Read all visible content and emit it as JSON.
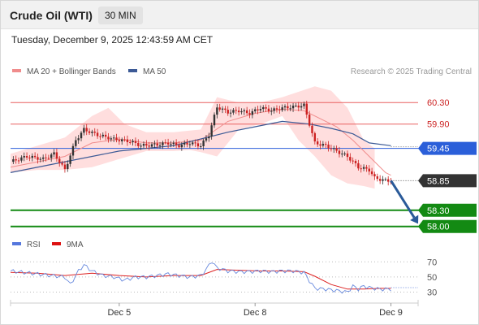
{
  "header": {
    "title": "Crude Oil (WTI)",
    "timeframe": "30 MIN"
  },
  "datetime": "Tuesday, December 9, 2025 12:43:59 AM CET",
  "legend": {
    "items": [
      {
        "label": "MA 20 + Bollinger Bands",
        "color": "#f08c8c"
      },
      {
        "label": "MA 50",
        "color": "#3c5a96"
      }
    ],
    "credit": "Research © 2025 Trading Central"
  },
  "rsi_legend": {
    "items": [
      {
        "label": "RSI",
        "color": "#5577dd"
      },
      {
        "label": "9MA",
        "color": "#dd1111"
      }
    ]
  },
  "colors": {
    "resistance": "#e86060",
    "current": "#2b5fd9",
    "target": "#138a13",
    "last": "#333333",
    "arrow": "#2a5a99",
    "rsi": "#6688dd",
    "rsi_ma": "#dd2222",
    "bands": "#ffd8d8",
    "up": "#333333",
    "down": "#cc2222"
  },
  "chart_data": {
    "type": "candlestick",
    "ylim": [
      57.92,
      60.62
    ],
    "x_range": [
      0,
      150
    ],
    "x_ticks": [
      {
        "label": "Dec 5",
        "x": 40
      },
      {
        "label": "Dec 8",
        "x": 90
      },
      {
        "label": "Dec 9",
        "x": 140
      }
    ],
    "levels": [
      {
        "label": "60.30",
        "value": 60.3,
        "kind": "resistance"
      },
      {
        "label": "59.90",
        "value": 59.9,
        "kind": "resistance"
      },
      {
        "label": "59.45",
        "value": 59.45,
        "kind": "current"
      },
      {
        "label": "58.85",
        "value": 58.85,
        "kind": "last"
      },
      {
        "label": "58.30",
        "value": 58.3,
        "kind": "target"
      },
      {
        "label": "58.00",
        "value": 58.0,
        "kind": "target"
      }
    ],
    "forecast_arrow": {
      "from": [
        140,
        58.85
      ],
      "to": [
        150,
        58.05
      ]
    },
    "price_anchors": [
      [
        0,
        59.2
      ],
      [
        6,
        59.3
      ],
      [
        12,
        59.25
      ],
      [
        16,
        59.35
      ],
      [
        20,
        59.05
      ],
      [
        24,
        59.6
      ],
      [
        27,
        59.8
      ],
      [
        32,
        59.7
      ],
      [
        38,
        59.62
      ],
      [
        44,
        59.58
      ],
      [
        48,
        59.5
      ],
      [
        54,
        59.52
      ],
      [
        58,
        59.55
      ],
      [
        62,
        59.5
      ],
      [
        66,
        59.55
      ],
      [
        70,
        59.5
      ],
      [
        73,
        59.7
      ],
      [
        76,
        60.22
      ],
      [
        80,
        60.12
      ],
      [
        84,
        60.15
      ],
      [
        88,
        60.1
      ],
      [
        92,
        60.2
      ],
      [
        96,
        60.15
      ],
      [
        100,
        60.2
      ],
      [
        104,
        60.22
      ],
      [
        108,
        60.25
      ],
      [
        110,
        59.9
      ],
      [
        112,
        59.55
      ],
      [
        116,
        59.5
      ],
      [
        120,
        59.4
      ],
      [
        124,
        59.3
      ],
      [
        128,
        59.1
      ],
      [
        132,
        59.05
      ],
      [
        134,
        58.9
      ],
      [
        138,
        58.85
      ],
      [
        140,
        58.85
      ]
    ],
    "ma20_anchors": [
      [
        0,
        59.1
      ],
      [
        10,
        59.2
      ],
      [
        20,
        59.3
      ],
      [
        30,
        59.55
      ],
      [
        40,
        59.62
      ],
      [
        50,
        59.55
      ],
      [
        60,
        59.55
      ],
      [
        70,
        59.6
      ],
      [
        80,
        59.95
      ],
      [
        90,
        60.1
      ],
      [
        100,
        60.18
      ],
      [
        108,
        60.15
      ],
      [
        114,
        60.0
      ],
      [
        120,
        59.85
      ],
      [
        126,
        59.6
      ],
      [
        132,
        59.3
      ],
      [
        138,
        59.0
      ],
      [
        140,
        58.95
      ]
    ],
    "bb_upper_anchors": [
      [
        0,
        59.35
      ],
      [
        10,
        59.5
      ],
      [
        20,
        59.65
      ],
      [
        30,
        60.05
      ],
      [
        36,
        60.2
      ],
      [
        42,
        59.9
      ],
      [
        50,
        59.75
      ],
      [
        60,
        59.75
      ],
      [
        70,
        59.8
      ],
      [
        76,
        60.4
      ],
      [
        84,
        60.3
      ],
      [
        92,
        60.3
      ],
      [
        100,
        60.4
      ],
      [
        106,
        60.5
      ],
      [
        112,
        60.6
      ],
      [
        118,
        60.52
      ],
      [
        124,
        60.2
      ],
      [
        130,
        59.6
      ],
      [
        134,
        59.45
      ]
    ],
    "bb_lower_anchors": [
      [
        0,
        59.0
      ],
      [
        10,
        59.05
      ],
      [
        20,
        59.05
      ],
      [
        30,
        59.1
      ],
      [
        40,
        59.25
      ],
      [
        50,
        59.4
      ],
      [
        60,
        59.4
      ],
      [
        66,
        59.42
      ],
      [
        70,
        59.38
      ],
      [
        76,
        59.3
      ],
      [
        84,
        59.8
      ],
      [
        92,
        59.9
      ],
      [
        100,
        60.05
      ],
      [
        106,
        59.6
      ],
      [
        112,
        59.3
      ],
      [
        118,
        58.95
      ],
      [
        124,
        58.8
      ],
      [
        130,
        58.75
      ],
      [
        134,
        58.7
      ]
    ],
    "ma50_anchors": [
      [
        0,
        59.0
      ],
      [
        20,
        59.2
      ],
      [
        40,
        59.4
      ],
      [
        60,
        59.5
      ],
      [
        80,
        59.75
      ],
      [
        90,
        59.85
      ],
      [
        100,
        59.95
      ],
      [
        110,
        59.9
      ],
      [
        118,
        59.82
      ],
      [
        126,
        59.72
      ],
      [
        132,
        59.55
      ],
      [
        140,
        59.5
      ]
    ],
    "ma50_dotted": {
      "x": [
        140,
        150
      ],
      "value": 59.48
    },
    "last_dotted": {
      "x": [
        140,
        150
      ],
      "value": 58.85
    },
    "rsi": {
      "ylim": [
        22,
        80
      ],
      "levels": [
        70,
        50,
        30
      ],
      "rsi_anchors": [
        [
          0,
          58
        ],
        [
          5,
          56
        ],
        [
          10,
          54
        ],
        [
          15,
          52
        ],
        [
          20,
          50
        ],
        [
          22,
          40
        ],
        [
          25,
          58
        ],
        [
          27,
          66
        ],
        [
          30,
          58
        ],
        [
          34,
          52
        ],
        [
          38,
          50
        ],
        [
          42,
          46
        ],
        [
          46,
          50
        ],
        [
          50,
          50
        ],
        [
          54,
          52
        ],
        [
          58,
          54
        ],
        [
          62,
          52
        ],
        [
          66,
          50
        ],
        [
          70,
          52
        ],
        [
          72,
          60
        ],
        [
          74,
          71
        ],
        [
          76,
          62
        ],
        [
          80,
          58
        ],
        [
          84,
          57
        ],
        [
          88,
          57
        ],
        [
          92,
          58
        ],
        [
          96,
          57
        ],
        [
          100,
          58
        ],
        [
          104,
          58
        ],
        [
          108,
          56
        ],
        [
          110,
          45
        ],
        [
          112,
          35
        ],
        [
          116,
          34
        ],
        [
          120,
          32
        ],
        [
          124,
          30
        ],
        [
          126,
          38
        ],
        [
          128,
          34
        ],
        [
          130,
          38
        ],
        [
          132,
          36
        ],
        [
          136,
          34
        ],
        [
          140,
          34
        ]
      ],
      "ma_anchors": [
        [
          0,
          56
        ],
        [
          10,
          55
        ],
        [
          20,
          52
        ],
        [
          30,
          55
        ],
        [
          40,
          52
        ],
        [
          50,
          50
        ],
        [
          60,
          52
        ],
        [
          70,
          52
        ],
        [
          76,
          60
        ],
        [
          84,
          59
        ],
        [
          92,
          58
        ],
        [
          100,
          58
        ],
        [
          108,
          57
        ],
        [
          112,
          51
        ],
        [
          118,
          40
        ],
        [
          124,
          34
        ],
        [
          130,
          34
        ],
        [
          136,
          35
        ],
        [
          140,
          35
        ]
      ],
      "dotted_value": 36
    }
  }
}
